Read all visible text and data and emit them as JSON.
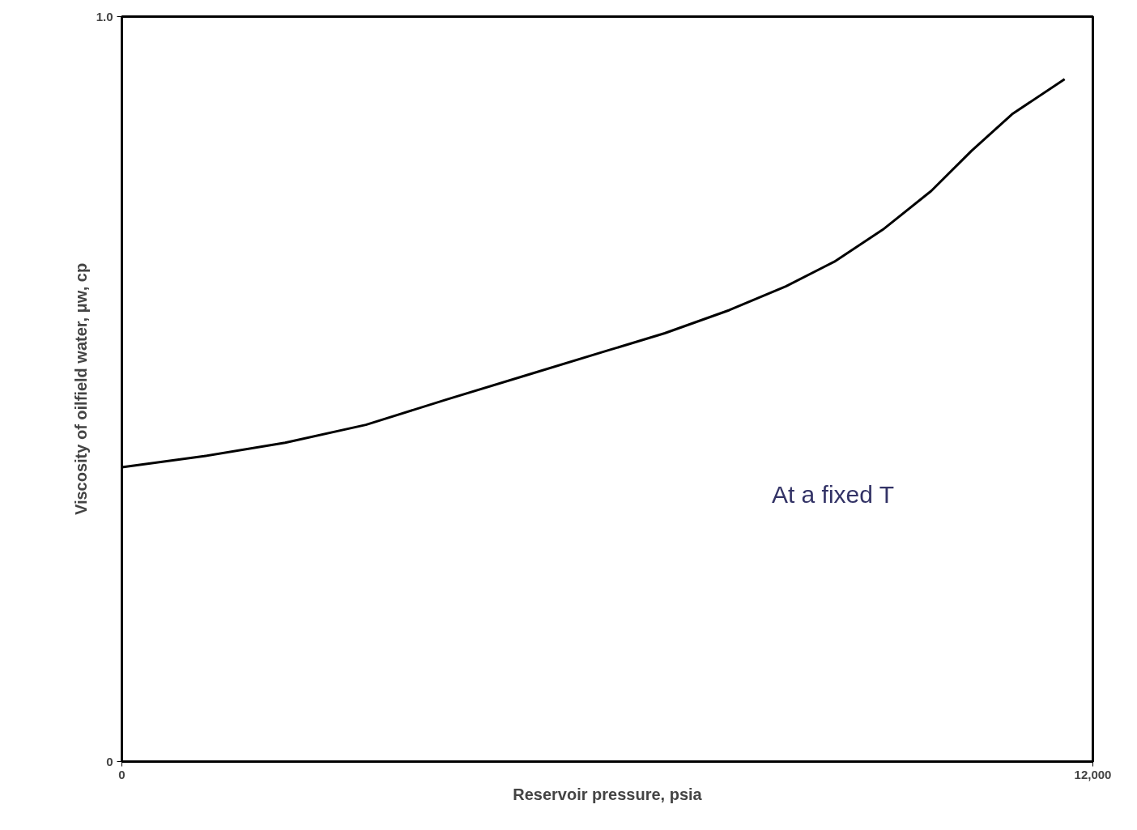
{
  "chart_data": {
    "type": "line",
    "xlabel": "Reservoir pressure, psia",
    "ylabel": "Viscosity of oilfield water, μw, cp",
    "x": [
      0,
      1018,
      2017,
      3015,
      4013,
      5012,
      6010,
      6709,
      7507,
      8206,
      8805,
      9404,
      10003,
      10502,
      11001,
      11651
    ],
    "values": [
      0.395,
      0.41,
      0.428,
      0.452,
      0.486,
      0.519,
      0.552,
      0.575,
      0.606,
      0.638,
      0.671,
      0.714,
      0.766,
      0.82,
      0.869,
      0.916
    ],
    "color": "#000000",
    "xlim": [
      0,
      12000
    ],
    "ylim": [
      0,
      1
    ],
    "xticks": [
      0,
      {
        "value": 12000,
        "label": "12,000"
      }
    ],
    "yticks": [
      0,
      {
        "value": 1,
        "label": "1.0"
      }
    ],
    "marker": "none",
    "line_style": "solid",
    "annotations": [
      "At a fixed T"
    ]
  }
}
